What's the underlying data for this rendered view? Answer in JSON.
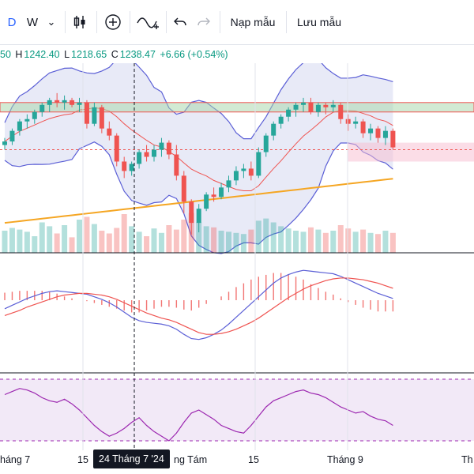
{
  "toolbar": {
    "interval": "D",
    "chart_style": "W",
    "chevron": "⌄",
    "load_template": "Nạp mẫu",
    "save_template": "Lưu mẫu",
    "icons": [
      "candles-icon",
      "add-indicator-icon",
      "indicators-wave-icon",
      "undo-icon",
      "redo-icon"
    ]
  },
  "ohlc": {
    "open_tail": "50",
    "high_label": "H",
    "high": "1242.40",
    "low_label": "L",
    "low": "1218.65",
    "close_label": "C",
    "close": "1238.47",
    "change": "+6.66 (+0.54%)"
  },
  "colors": {
    "up": "#26a69a",
    "down": "#ef5350",
    "bb_fill": "#d6d8f0",
    "bb_line": "#5b5fd6",
    "ma_orange": "#f5a623",
    "rsi_fill": "#ede0f3",
    "rsi_line": "#9c27b0",
    "macd_line": "#5b5fd6",
    "signal_line": "#ef5350"
  },
  "xaxis": {
    "labels": [
      "háng 7",
      "15",
      "ng Tám",
      "15",
      "Tháng 9",
      "Th"
    ],
    "crosshair_label": "24 Tháng 7 '24"
  },
  "chart_data": {
    "type": "candlestick",
    "candles": [
      [
        1226,
        1232,
        1222,
        1229
      ],
      [
        1229,
        1240,
        1226,
        1238
      ],
      [
        1238,
        1248,
        1234,
        1246
      ],
      [
        1246,
        1252,
        1240,
        1248
      ],
      [
        1248,
        1256,
        1244,
        1254
      ],
      [
        1254,
        1262,
        1250,
        1260
      ],
      [
        1260,
        1266,
        1254,
        1264
      ],
      [
        1264,
        1270,
        1258,
        1262
      ],
      [
        1262,
        1268,
        1256,
        1264
      ],
      [
        1264,
        1266,
        1258,
        1260
      ],
      [
        1260,
        1266,
        1254,
        1262
      ],
      [
        1262,
        1264,
        1240,
        1244
      ],
      [
        1244,
        1262,
        1242,
        1258
      ],
      [
        1258,
        1260,
        1236,
        1240
      ],
      [
        1240,
        1246,
        1230,
        1234
      ],
      [
        1234,
        1236,
        1208,
        1212
      ],
      [
        1212,
        1216,
        1198,
        1204
      ],
      [
        1204,
        1212,
        1200,
        1210
      ],
      [
        1210,
        1222,
        1206,
        1220
      ],
      [
        1220,
        1226,
        1212,
        1216
      ],
      [
        1216,
        1226,
        1212,
        1222
      ],
      [
        1222,
        1232,
        1216,
        1228
      ],
      [
        1228,
        1230,
        1214,
        1218
      ],
      [
        1218,
        1226,
        1196,
        1200
      ],
      [
        1200,
        1204,
        1168,
        1178
      ],
      [
        1178,
        1180,
        1150,
        1160
      ],
      [
        1160,
        1176,
        1152,
        1172
      ],
      [
        1172,
        1186,
        1170,
        1184
      ],
      [
        1184,
        1190,
        1178,
        1182
      ],
      [
        1182,
        1194,
        1180,
        1190
      ],
      [
        1190,
        1200,
        1186,
        1196
      ],
      [
        1196,
        1208,
        1192,
        1204
      ],
      [
        1204,
        1210,
        1198,
        1206
      ],
      [
        1206,
        1212,
        1196,
        1200
      ],
      [
        1200,
        1224,
        1198,
        1220
      ],
      [
        1220,
        1236,
        1216,
        1234
      ],
      [
        1234,
        1246,
        1230,
        1244
      ],
      [
        1244,
        1252,
        1240,
        1250
      ],
      [
        1250,
        1258,
        1246,
        1256
      ],
      [
        1256,
        1262,
        1250,
        1260
      ],
      [
        1260,
        1266,
        1254,
        1262
      ],
      [
        1262,
        1266,
        1252,
        1254
      ],
      [
        1254,
        1262,
        1250,
        1260
      ],
      [
        1260,
        1262,
        1252,
        1258
      ],
      [
        1258,
        1264,
        1254,
        1260
      ],
      [
        1260,
        1262,
        1244,
        1248
      ],
      [
        1248,
        1252,
        1238,
        1244
      ],
      [
        1244,
        1250,
        1240,
        1246
      ],
      [
        1246,
        1248,
        1232,
        1236
      ],
      [
        1236,
        1244,
        1230,
        1240
      ],
      [
        1240,
        1242,
        1228,
        1232
      ],
      [
        1232,
        1242,
        1226,
        1238
      ],
      [
        1238,
        1240,
        1222,
        1224
      ]
    ],
    "volumes": [
      40,
      45,
      42,
      38,
      30,
      55,
      48,
      35,
      50,
      28,
      60,
      65,
      52,
      40,
      35,
      45,
      70,
      48,
      38,
      30,
      44,
      36,
      50,
      42,
      60,
      72,
      55,
      48,
      46,
      40,
      38,
      36,
      34,
      42,
      58,
      62,
      55,
      48,
      44,
      40,
      38,
      46,
      42,
      36,
      40,
      50,
      44,
      38,
      42,
      36,
      34,
      40,
      36
    ],
    "macd": [
      -10,
      -6,
      -2,
      2,
      5,
      8,
      10,
      11,
      10,
      9,
      8,
      7,
      4,
      1,
      -3,
      -8,
      -14,
      -20,
      -24,
      -26,
      -27,
      -28,
      -30,
      -34,
      -40,
      -45,
      -46,
      -44,
      -40,
      -35,
      -28,
      -20,
      -12,
      -4,
      4,
      12,
      20,
      26,
      30,
      33,
      35,
      34,
      33,
      32,
      31,
      28,
      24,
      20,
      16,
      12,
      8,
      5,
      2
    ],
    "signal": [
      -18,
      -15,
      -12,
      -8,
      -5,
      -2,
      1,
      4,
      6,
      7,
      8,
      8,
      7,
      6,
      4,
      1,
      -3,
      -7,
      -11,
      -15,
      -18,
      -21,
      -23,
      -26,
      -30,
      -34,
      -38,
      -40,
      -40,
      -39,
      -37,
      -34,
      -30,
      -26,
      -21,
      -15,
      -9,
      -3,
      3,
      8,
      13,
      17,
      20,
      23,
      25,
      26,
      26,
      25,
      24,
      22,
      20,
      17,
      14
    ],
    "rsi": [
      60,
      62,
      64,
      63,
      61,
      58,
      56,
      55,
      57,
      54,
      50,
      45,
      40,
      36,
      33,
      35,
      38,
      42,
      45,
      40,
      36,
      33,
      30,
      35,
      42,
      48,
      50,
      47,
      44,
      40,
      38,
      36,
      35,
      40,
      46,
      52,
      56,
      58,
      60,
      62,
      63,
      61,
      60,
      58,
      55,
      52,
      50,
      48,
      49,
      46,
      44,
      43,
      40
    ]
  }
}
